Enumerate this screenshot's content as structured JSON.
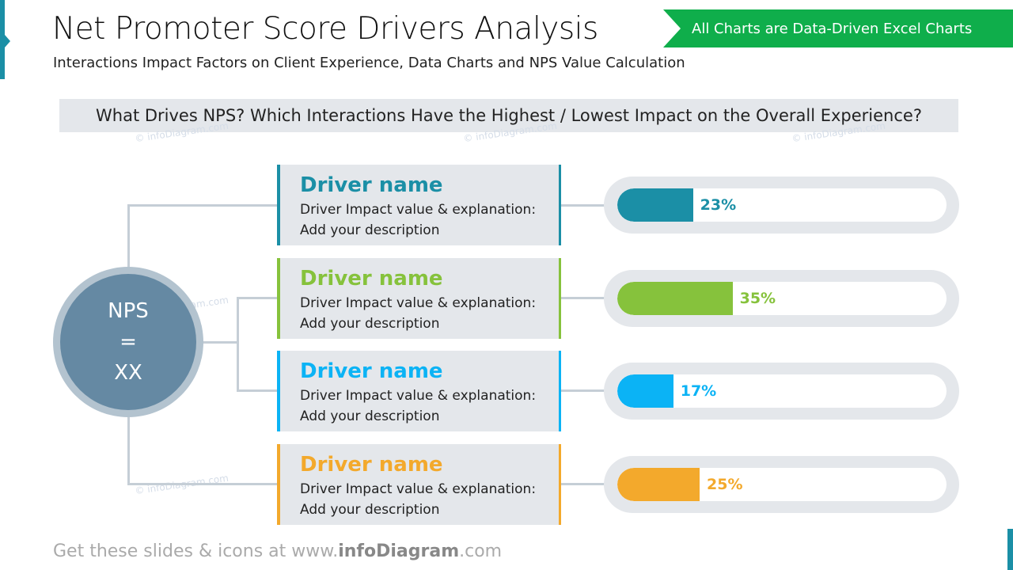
{
  "header": {
    "title": "Net Promoter Score Drivers Analysis",
    "subtitle": "Interactions Impact Factors on Client Experience, Data Charts and NPS Value Calculation",
    "banner": "All Charts are Data-Driven Excel Charts"
  },
  "question": "What Drives NPS? Which Interactions Have the Highest / Lowest Impact on the Overall Experience?",
  "nps": {
    "label": "NPS",
    "eq": "=",
    "value": "XX"
  },
  "drivers": [
    {
      "name": "Driver name",
      "line1": "Driver Impact value & explanation:",
      "line2": "Add your description",
      "value": 23,
      "label": "23%",
      "color": "#1b8fa6"
    },
    {
      "name": "Driver name",
      "line1": "Driver Impact value & explanation:",
      "line2": "Add your description",
      "value": 35,
      "label": "35%",
      "color": "#86c23c"
    },
    {
      "name": "Driver name",
      "line1": "Driver Impact value & explanation:",
      "line2": "Add your description",
      "value": 17,
      "label": "17%",
      "color": "#0bb3f5"
    },
    {
      "name": "Driver name",
      "line1": "Driver Impact value & explanation:",
      "line2": "Add your description",
      "value": 25,
      "label": "25%",
      "color": "#f3a92c"
    }
  ],
  "watermark": "© infoDiagram.com",
  "footer": {
    "prefix": "Get these slides & icons at www.",
    "brand": "infoDiagram",
    "suffix": ".com"
  }
}
